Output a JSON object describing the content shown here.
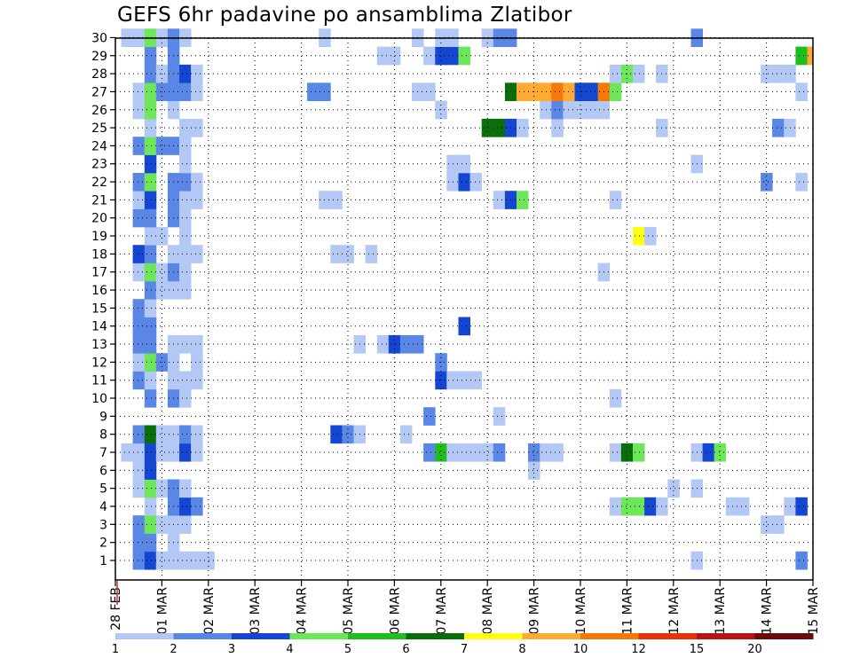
{
  "chart_data": {
    "type": "heatmap",
    "title": "GEFS 6hr padavine po ansamblima Zlatibor",
    "y_labels": [
      "1",
      "2",
      "3",
      "4",
      "5",
      "6",
      "7",
      "8",
      "9",
      "10",
      "11",
      "12",
      "13",
      "14",
      "15",
      "16",
      "17",
      "18",
      "19",
      "20",
      "21",
      "22",
      "23",
      "24",
      "25",
      "26",
      "27",
      "28",
      "29",
      "30"
    ],
    "x_labels": [
      "28 FEB",
      "01 MAR",
      "02 MAR",
      "03 MAR",
      "04 MAR",
      "05 MAR",
      "06 MAR",
      "07 MAR",
      "08 MAR",
      "09 MAR",
      "10 MAR",
      "11 MAR",
      "12 MAR",
      "13 MAR",
      "14 MAR",
      "15 MAR"
    ],
    "x_range_days": [
      0,
      15
    ],
    "time_step_days": 0.25,
    "grid": true,
    "colorbar": {
      "labels": [
        "1",
        "2",
        "3",
        "4",
        "5",
        "6",
        "7",
        "8",
        "10",
        "12",
        "15",
        "20"
      ],
      "bins": [
        {
          "min": 1,
          "max": 2,
          "color": "#b4c8f5"
        },
        {
          "min": 2,
          "max": 3,
          "color": "#5a87e6"
        },
        {
          "min": 3,
          "max": 4,
          "color": "#1446d2"
        },
        {
          "min": 4,
          "max": 5,
          "color": "#6ee65a"
        },
        {
          "min": 5,
          "max": 6,
          "color": "#1ebe1e"
        },
        {
          "min": 6,
          "max": 7,
          "color": "#0a6e0a"
        },
        {
          "min": 7,
          "max": 8,
          "color": "#ffff14"
        },
        {
          "min": 8,
          "max": 10,
          "color": "#ffaa32"
        },
        {
          "min": 10,
          "max": 12,
          "color": "#f5780a"
        },
        {
          "min": 12,
          "max": 15,
          "color": "#e6320a"
        },
        {
          "min": 15,
          "max": 20,
          "color": "#b41414"
        },
        {
          "min": 20,
          "max": 30,
          "color": "#6e0a0a"
        }
      ]
    },
    "cells_note": "member, day offset from 28 FEB, 6h-precip (mm)",
    "cells": [
      [
        1,
        0.5,
        2
      ],
      [
        1,
        0.75,
        3
      ],
      [
        1,
        1.0,
        1
      ],
      [
        1,
        1.25,
        1
      ],
      [
        1,
        1.5,
        1
      ],
      [
        1,
        1.75,
        1
      ],
      [
        1,
        2.0,
        1
      ],
      [
        1,
        12.5,
        1
      ],
      [
        1,
        14.75,
        2
      ],
      [
        2,
        0.5,
        2
      ],
      [
        2,
        0.75,
        2
      ],
      [
        2,
        1.25,
        1
      ],
      [
        3,
        0.5,
        2
      ],
      [
        3,
        0.75,
        4
      ],
      [
        3,
        1.0,
        1
      ],
      [
        3,
        1.25,
        1
      ],
      [
        3,
        1.5,
        1
      ],
      [
        3,
        14.0,
        1
      ],
      [
        3,
        14.25,
        1
      ],
      [
        4,
        0.75,
        1
      ],
      [
        4,
        1.25,
        2
      ],
      [
        4,
        1.5,
        3
      ],
      [
        4,
        1.75,
        2
      ],
      [
        4,
        10.75,
        1
      ],
      [
        4,
        11.0,
        4
      ],
      [
        4,
        11.25,
        4
      ],
      [
        4,
        11.5,
        3
      ],
      [
        4,
        11.75,
        1
      ],
      [
        4,
        13.25,
        1
      ],
      [
        4,
        13.5,
        1
      ],
      [
        4,
        14.5,
        1
      ],
      [
        4,
        14.75,
        3
      ],
      [
        5,
        0.5,
        1
      ],
      [
        5,
        0.75,
        4
      ],
      [
        5,
        1.0,
        1
      ],
      [
        5,
        1.25,
        2
      ],
      [
        5,
        1.5,
        1
      ],
      [
        5,
        12.0,
        1
      ],
      [
        5,
        12.5,
        1
      ],
      [
        6,
        0.5,
        1
      ],
      [
        6,
        0.75,
        3
      ],
      [
        6,
        9.0,
        1
      ],
      [
        7,
        0.25,
        1
      ],
      [
        7,
        0.5,
        1
      ],
      [
        7,
        0.75,
        3
      ],
      [
        7,
        1.0,
        1
      ],
      [
        7,
        1.25,
        1
      ],
      [
        7,
        1.5,
        3
      ],
      [
        7,
        1.75,
        1
      ],
      [
        7,
        6.75,
        2
      ],
      [
        7,
        7.0,
        5
      ],
      [
        7,
        7.25,
        1
      ],
      [
        7,
        7.5,
        1
      ],
      [
        7,
        7.75,
        1
      ],
      [
        7,
        8.0,
        1
      ],
      [
        7,
        8.25,
        2
      ],
      [
        7,
        9.0,
        2
      ],
      [
        7,
        9.25,
        1
      ],
      [
        7,
        9.5,
        1
      ],
      [
        7,
        10.75,
        1
      ],
      [
        7,
        11.0,
        6
      ],
      [
        7,
        11.25,
        4
      ],
      [
        7,
        12.5,
        1
      ],
      [
        7,
        12.75,
        3
      ],
      [
        7,
        13.0,
        4
      ],
      [
        8,
        0.5,
        2
      ],
      [
        8,
        0.75,
        6
      ],
      [
        8,
        1.0,
        1
      ],
      [
        8,
        1.25,
        1
      ],
      [
        8,
        1.5,
        2
      ],
      [
        8,
        1.75,
        1
      ],
      [
        8,
        4.75,
        3
      ],
      [
        8,
        5.0,
        2
      ],
      [
        8,
        5.25,
        1
      ],
      [
        8,
        6.25,
        1
      ],
      [
        9,
        6.75,
        2
      ],
      [
        9,
        8.25,
        1
      ],
      [
        10,
        0.75,
        2
      ],
      [
        10,
        1.25,
        2
      ],
      [
        10,
        1.5,
        1
      ],
      [
        10,
        10.75,
        1
      ],
      [
        11,
        0.5,
        2
      ],
      [
        11,
        0.75,
        1
      ],
      [
        11,
        1.25,
        1
      ],
      [
        11,
        1.5,
        1
      ],
      [
        11,
        1.75,
        1
      ],
      [
        11,
        7.0,
        3
      ],
      [
        11,
        7.25,
        1
      ],
      [
        11,
        7.5,
        1
      ],
      [
        11,
        7.75,
        1
      ],
      [
        12,
        0.5,
        1
      ],
      [
        12,
        0.75,
        4
      ],
      [
        12,
        1.0,
        2
      ],
      [
        12,
        1.25,
        1
      ],
      [
        12,
        1.75,
        1
      ],
      [
        12,
        7.0,
        2
      ],
      [
        13,
        0.5,
        2
      ],
      [
        13,
        0.75,
        2
      ],
      [
        13,
        1.25,
        1
      ],
      [
        13,
        1.5,
        1
      ],
      [
        13,
        1.75,
        1
      ],
      [
        13,
        5.25,
        1
      ],
      [
        13,
        5.75,
        1
      ],
      [
        13,
        6.0,
        3
      ],
      [
        13,
        6.25,
        2
      ],
      [
        13,
        6.5,
        2
      ],
      [
        14,
        0.5,
        2
      ],
      [
        14,
        0.75,
        2
      ],
      [
        14,
        7.5,
        3
      ],
      [
        15,
        0.5,
        2
      ],
      [
        15,
        0.75,
        1
      ],
      [
        16,
        0.75,
        2
      ],
      [
        16,
        1.0,
        1
      ],
      [
        16,
        1.25,
        1
      ],
      [
        16,
        1.5,
        1
      ],
      [
        17,
        0.5,
        1
      ],
      [
        17,
        0.75,
        4
      ],
      [
        17,
        1.0,
        1
      ],
      [
        17,
        1.25,
        2
      ],
      [
        17,
        1.5,
        1
      ],
      [
        17,
        10.5,
        1
      ],
      [
        18,
        0.5,
        3
      ],
      [
        18,
        0.75,
        2
      ],
      [
        18,
        1.25,
        1
      ],
      [
        18,
        1.5,
        1
      ],
      [
        18,
        1.75,
        1
      ],
      [
        18,
        4.75,
        1
      ],
      [
        18,
        5.0,
        1
      ],
      [
        18,
        5.5,
        1
      ],
      [
        19,
        0.75,
        1
      ],
      [
        19,
        1.0,
        1
      ],
      [
        19,
        1.5,
        1
      ],
      [
        19,
        11.25,
        7
      ],
      [
        19,
        11.5,
        1
      ],
      [
        20,
        0.5,
        2
      ],
      [
        20,
        0.75,
        2
      ],
      [
        20,
        1.25,
        2
      ],
      [
        20,
        1.5,
        1
      ],
      [
        21,
        0.5,
        1
      ],
      [
        21,
        0.75,
        3
      ],
      [
        21,
        1.25,
        2
      ],
      [
        21,
        1.5,
        1
      ],
      [
        21,
        1.75,
        1
      ],
      [
        21,
        4.5,
        1
      ],
      [
        21,
        4.75,
        1
      ],
      [
        21,
        8.25,
        1
      ],
      [
        21,
        8.5,
        3
      ],
      [
        21,
        8.75,
        4
      ],
      [
        21,
        10.75,
        1
      ],
      [
        22,
        0.5,
        2
      ],
      [
        22,
        0.75,
        4
      ],
      [
        22,
        1.25,
        2
      ],
      [
        22,
        1.5,
        2
      ],
      [
        22,
        1.75,
        1
      ],
      [
        22,
        7.25,
        1
      ],
      [
        22,
        7.5,
        3
      ],
      [
        22,
        7.75,
        1
      ],
      [
        22,
        14.0,
        2
      ],
      [
        22,
        14.75,
        1
      ],
      [
        23,
        0.75,
        3
      ],
      [
        23,
        1.5,
        1
      ],
      [
        23,
        7.25,
        1
      ],
      [
        23,
        7.5,
        1
      ],
      [
        23,
        12.5,
        1
      ],
      [
        24,
        0.5,
        2
      ],
      [
        24,
        0.75,
        4
      ],
      [
        24,
        1.0,
        2
      ],
      [
        24,
        1.25,
        2
      ],
      [
        24,
        1.5,
        1
      ],
      [
        25,
        0.75,
        1
      ],
      [
        25,
        1.5,
        1
      ],
      [
        25,
        1.75,
        1
      ],
      [
        25,
        8.0,
        6
      ],
      [
        25,
        8.25,
        6
      ],
      [
        25,
        8.5,
        3
      ],
      [
        25,
        8.75,
        1
      ],
      [
        25,
        9.5,
        1
      ],
      [
        25,
        11.75,
        1
      ],
      [
        25,
        14.25,
        2
      ],
      [
        25,
        14.5,
        1
      ],
      [
        26,
        0.5,
        1
      ],
      [
        26,
        0.75,
        4
      ],
      [
        26,
        1.25,
        1
      ],
      [
        26,
        7.0,
        1
      ],
      [
        26,
        9.25,
        1
      ],
      [
        26,
        9.5,
        2
      ],
      [
        26,
        9.75,
        1
      ],
      [
        26,
        10.0,
        1
      ],
      [
        26,
        10.25,
        1
      ],
      [
        26,
        10.5,
        1
      ],
      [
        27,
        0.5,
        1
      ],
      [
        27,
        0.75,
        4
      ],
      [
        27,
        1.0,
        2
      ],
      [
        27,
        1.25,
        2
      ],
      [
        27,
        1.5,
        2
      ],
      [
        27,
        1.75,
        1
      ],
      [
        27,
        4.25,
        2
      ],
      [
        27,
        4.5,
        2
      ],
      [
        27,
        6.5,
        1
      ],
      [
        27,
        6.75,
        1
      ],
      [
        27,
        8.5,
        6
      ],
      [
        27,
        8.75,
        9
      ],
      [
        27,
        9.0,
        8
      ],
      [
        27,
        9.25,
        9
      ],
      [
        27,
        9.5,
        10
      ],
      [
        27,
        9.75,
        8
      ],
      [
        27,
        10.0,
        3
      ],
      [
        27,
        10.25,
        3
      ],
      [
        27,
        10.5,
        10
      ],
      [
        27,
        10.75,
        4
      ],
      [
        27,
        14.75,
        1
      ],
      [
        28,
        0.75,
        2
      ],
      [
        28,
        1.0,
        1
      ],
      [
        28,
        1.25,
        2
      ],
      [
        28,
        1.5,
        3
      ],
      [
        28,
        1.75,
        1
      ],
      [
        28,
        10.75,
        1
      ],
      [
        28,
        11.0,
        4
      ],
      [
        28,
        11.25,
        1
      ],
      [
        28,
        11.75,
        1
      ],
      [
        28,
        14.0,
        1
      ],
      [
        28,
        14.25,
        1
      ],
      [
        28,
        14.5,
        1
      ],
      [
        29,
        0.75,
        2
      ],
      [
        29,
        1.25,
        2
      ],
      [
        29,
        5.75,
        1
      ],
      [
        29,
        6.0,
        1
      ],
      [
        29,
        6.75,
        1
      ],
      [
        29,
        7.0,
        3
      ],
      [
        29,
        7.25,
        3
      ],
      [
        29,
        7.5,
        4
      ],
      [
        29,
        14.75,
        5
      ],
      [
        29,
        15.0,
        8
      ],
      [
        30,
        0.25,
        1
      ],
      [
        30,
        0.5,
        1
      ],
      [
        30,
        0.75,
        4
      ],
      [
        30,
        1.0,
        1
      ],
      [
        30,
        1.25,
        2
      ],
      [
        30,
        1.5,
        1
      ],
      [
        30,
        4.5,
        1
      ],
      [
        30,
        6.5,
        1
      ],
      [
        30,
        7.0,
        1
      ],
      [
        30,
        7.25,
        1
      ],
      [
        30,
        8.0,
        1
      ],
      [
        30,
        8.25,
        2
      ],
      [
        30,
        8.5,
        2
      ],
      [
        30,
        12.5,
        2
      ]
    ]
  }
}
